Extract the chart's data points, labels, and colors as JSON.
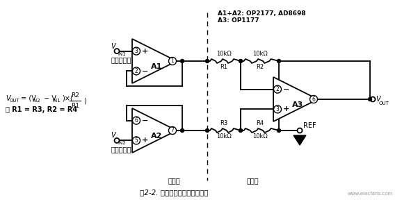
{
  "title": "图2-2. 带输入缓冲的减法器电路",
  "bg_color": "#ffffff",
  "top_label": "A1+A2: OP2177, AD8698\nA3: OP1177",
  "formula_line1": "V",
  "formula_line1b": "OUT",
  "formula_line1c": " = (V",
  "formula_line1d": "IN2",
  "formula_line1e": " − V",
  "formula_line1f": "IN1",
  "formula_line1g": ")×(",
  "formula_line2": "当 R1 = R3, R2 = R4",
  "label_A1": "A1",
  "label_A2": "A2",
  "label_A3": "A3",
  "label_vin1": "V",
  "label_vin1_sub": "IN1",
  "label_vin2": "V",
  "label_vin2_sub": "IN2",
  "label_vout": "V",
  "label_vout_sub": "OUT",
  "label_ref": "REF",
  "label_input_stage": "输入级",
  "label_output_stage": "输出级",
  "label_inv_input": "反相输入端",
  "label_noninv_input": "同相输入端",
  "label_R1": "R1",
  "label_R2": "R2",
  "label_R3": "R3",
  "label_R4": "R4",
  "label_10k": "10kΩ"
}
